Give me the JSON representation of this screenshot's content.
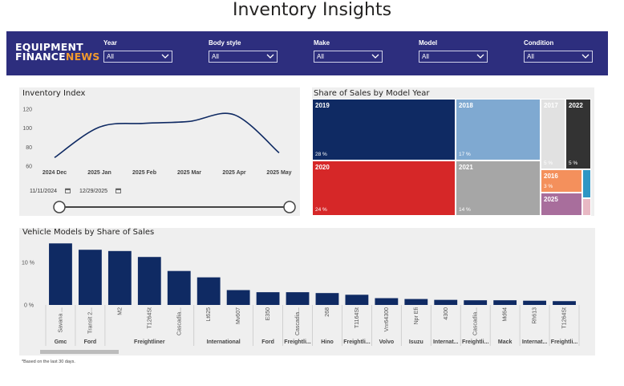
{
  "page": {
    "title": "Inventory Insights",
    "footnote": "*Based on the last 30 days."
  },
  "logo": {
    "line1": "EQUIPMENT",
    "line2a": "FINANCE",
    "line2b": "NEWS"
  },
  "filters": [
    {
      "label": "Year",
      "value": "All"
    },
    {
      "label": "Body style",
      "value": "All"
    },
    {
      "label": "Make",
      "value": "All"
    },
    {
      "label": "Model",
      "value": "All"
    },
    {
      "label": "Condition",
      "value": "All"
    }
  ],
  "inventory_index": {
    "title": "Inventory Index",
    "start_date": "11/11/2024",
    "end_date": "12/29/2025"
  },
  "share_by_year": {
    "title": "Share of Sales by Model Year",
    "cells": [
      {
        "year": "2019",
        "pct": "28 %",
        "color": "#0f2a63"
      },
      {
        "year": "2018",
        "pct": "17 %",
        "color": "#7fa9d1"
      },
      {
        "year": "2017",
        "pct": "5 %",
        "color": "#e1e1e1"
      },
      {
        "year": "2022",
        "pct": "5 %",
        "color": "#333333"
      },
      {
        "year": "2020",
        "pct": "24 %",
        "color": "#d62728"
      },
      {
        "year": "2021",
        "pct": "14 %",
        "color": "#a6a6a6"
      },
      {
        "year": "2016",
        "pct": "3 %",
        "color": "#f4905c"
      },
      {
        "year": "2025",
        "pct": "",
        "color": "#a86e9c"
      }
    ]
  },
  "vehicle_models": {
    "title": "Vehicle Models by Share of Sales"
  },
  "chart_data": [
    {
      "type": "line",
      "title": "Inventory Index",
      "x": [
        "2024 Dec",
        "2025 Jan",
        "2025 Feb",
        "2025 Mar",
        "2025 Apr",
        "2025 May"
      ],
      "values": [
        69,
        101,
        105,
        107,
        114,
        74
      ],
      "yticks": [
        60,
        80,
        100,
        120
      ],
      "ylim": [
        60,
        125
      ],
      "color": "#0f2a63"
    },
    {
      "type": "bar",
      "title": "Vehicle Models by Share of Sales",
      "yticks": [
        "0 %",
        "10 %"
      ],
      "ylim": [
        0,
        0.155
      ],
      "color": "#0f2a63",
      "categories": [
        "Savana ...",
        "Transit 2...",
        "M2",
        "T1264St",
        "Cascadia...",
        "Lt625",
        "Mv607",
        "E350",
        "Cascadia...",
        "268",
        "T1164St",
        "Vnr64300",
        "Npr Efi",
        "4300",
        "Cascadia...",
        "Md64",
        "Rh613",
        "T1264St"
      ],
      "values": [
        0.145,
        0.13,
        0.127,
        0.113,
        0.08,
        0.065,
        0.035,
        0.03,
        0.03,
        0.028,
        0.024,
        0.016,
        0.014,
        0.012,
        0.011,
        0.011,
        0.01,
        0.009
      ],
      "groups": [
        {
          "label": "Gmc",
          "span": 1
        },
        {
          "label": "Ford",
          "span": 1
        },
        {
          "label": "Freightliner",
          "span": 3
        },
        {
          "label": "International",
          "span": 2
        },
        {
          "label": "Ford",
          "span": 1
        },
        {
          "label": "Freightli...",
          "span": 1
        },
        {
          "label": "Hino",
          "span": 1
        },
        {
          "label": "Freightli...",
          "span": 1
        },
        {
          "label": "Volvo",
          "span": 1
        },
        {
          "label": "Isuzu",
          "span": 1
        },
        {
          "label": "Internat...",
          "span": 1
        },
        {
          "label": "Freightli...",
          "span": 1
        },
        {
          "label": "Mack",
          "span": 1
        },
        {
          "label": "Internat...",
          "span": 1
        },
        {
          "label": "Freightli...",
          "span": 1
        }
      ]
    }
  ]
}
